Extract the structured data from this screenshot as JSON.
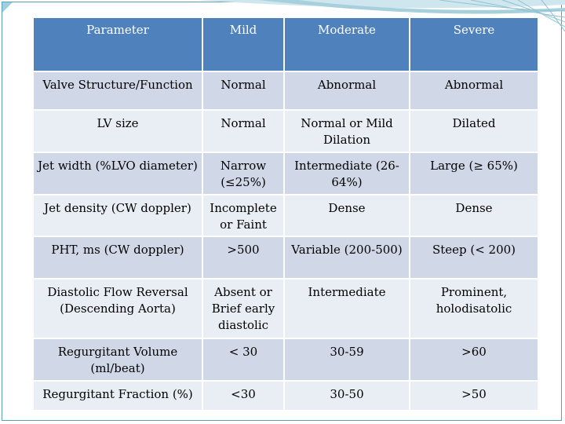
{
  "theme": {
    "header_bg": "#4f81bd",
    "row_odd_bg": "#d0d8e8",
    "row_even_bg": "#e9edf4",
    "accent": "#5aa0b4"
  },
  "table": {
    "headers": [
      "Parameter",
      "Mild",
      "Moderate",
      "Severe"
    ],
    "rows": [
      [
        "Valve Structure/Function",
        "Normal",
        "Abnormal",
        "Abnormal"
      ],
      [
        "LV size",
        "Normal",
        "Normal or Mild Dilation",
        "Dilated"
      ],
      [
        "Jet width (%LVO diameter)",
        "Narrow (≤25%)",
        "Intermediate (26-64%)",
        "Large (≥ 65%)"
      ],
      [
        "Jet density (CW doppler)",
        "Incomplete or Faint",
        "Dense",
        "Dense"
      ],
      [
        "PHT, ms (CW doppler)",
        ">500",
        "Variable (200-500)",
        "Steep (< 200)"
      ],
      [
        "Diastolic Flow Reversal (Descending Aorta)",
        "Absent or Brief early diastolic",
        "Intermediate",
        "Prominent, holodisatolic"
      ],
      [
        "Regurgitant Volume (ml/beat)",
        "< 30",
        "30-59",
        ">60"
      ],
      [
        "Regurgitant Fraction (%)",
        "<30",
        "30-50",
        ">50"
      ]
    ]
  }
}
